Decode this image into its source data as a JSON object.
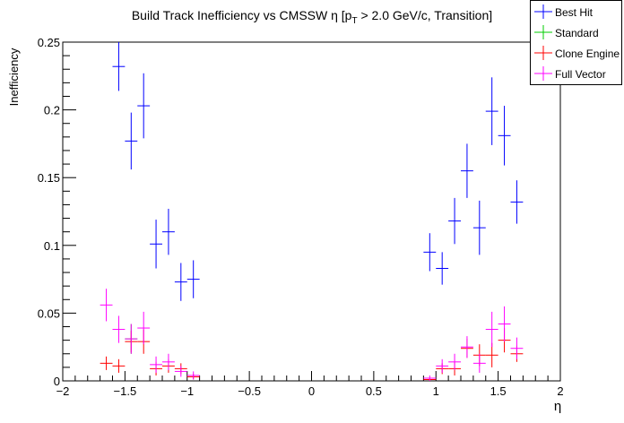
{
  "chart_data": {
    "type": "scatter",
    "title": "Build Track Inefficiency vs CMSSW η [p",
    "title_sub": "T",
    "title_rest": " > 2.0 GeV/c, Transition]",
    "xlabel": "η",
    "ylabel": "Inefficiency",
    "xlim": [
      -2,
      2
    ],
    "ylim": [
      0,
      0.25
    ],
    "xticks": [
      "-2",
      "-1.5",
      "-1",
      "-0.5",
      "0",
      "0.5",
      "1",
      "1.5",
      "2"
    ],
    "xtick_values": [
      -2,
      -1.5,
      -1,
      -0.5,
      0,
      0.5,
      1,
      1.5,
      2
    ],
    "yticks": [
      "0",
      "0.05",
      "0.1",
      "0.15",
      "0.2",
      "0.25"
    ],
    "ytick_values": [
      0,
      0.05,
      0.1,
      0.15,
      0.2,
      0.25
    ],
    "x_half_width": 0.05,
    "legend_position": "top-right",
    "series": [
      {
        "name": "Best Hit",
        "color": "#0000ff",
        "points": [
          {
            "x": -1.55,
            "y": 0.232,
            "err": 0.018
          },
          {
            "x": -1.45,
            "y": 0.177,
            "err": 0.021
          },
          {
            "x": -1.35,
            "y": 0.203,
            "err": 0.024
          },
          {
            "x": -1.25,
            "y": 0.101,
            "err": 0.018
          },
          {
            "x": -1.15,
            "y": 0.11,
            "err": 0.017
          },
          {
            "x": -1.05,
            "y": 0.073,
            "err": 0.014
          },
          {
            "x": -0.95,
            "y": 0.075,
            "err": 0.014
          },
          {
            "x": 0.95,
            "y": 0.095,
            "err": 0.014
          },
          {
            "x": 1.05,
            "y": 0.083,
            "err": 0.012
          },
          {
            "x": 1.15,
            "y": 0.118,
            "err": 0.017
          },
          {
            "x": 1.25,
            "y": 0.155,
            "err": 0.02
          },
          {
            "x": 1.35,
            "y": 0.113,
            "err": 0.02
          },
          {
            "x": 1.45,
            "y": 0.199,
            "err": 0.025
          },
          {
            "x": 1.55,
            "y": 0.181,
            "err": 0.022
          },
          {
            "x": 1.65,
            "y": 0.132,
            "err": 0.016
          }
        ]
      },
      {
        "name": "Standard",
        "color": "#00cc00",
        "points": [
          {
            "x": -1.45,
            "y": 0.031,
            "err": 0.011
          }
        ]
      },
      {
        "name": "Clone Engine",
        "color": "#ff0000",
        "points": [
          {
            "x": -1.65,
            "y": 0.013,
            "err": 0.005
          },
          {
            "x": -1.55,
            "y": 0.011,
            "err": 0.005
          },
          {
            "x": -1.45,
            "y": 0.029,
            "err": 0.008
          },
          {
            "x": -1.35,
            "y": 0.029,
            "err": 0.009
          },
          {
            "x": -1.25,
            "y": 0.009,
            "err": 0.005
          },
          {
            "x": -1.15,
            "y": 0.011,
            "err": 0.005
          },
          {
            "x": -1.05,
            "y": 0.009,
            "err": 0.004
          },
          {
            "x": -0.95,
            "y": 0.003,
            "err": 0.002
          },
          {
            "x": 0.95,
            "y": 0.001,
            "err": 0.001
          },
          {
            "x": 1.05,
            "y": 0.009,
            "err": 0.004
          },
          {
            "x": 1.15,
            "y": 0.009,
            "err": 0.005
          },
          {
            "x": 1.25,
            "y": 0.024,
            "err": 0.007
          },
          {
            "x": 1.35,
            "y": 0.019,
            "err": 0.008
          },
          {
            "x": 1.45,
            "y": 0.019,
            "err": 0.009
          },
          {
            "x": 1.55,
            "y": 0.03,
            "err": 0.009
          },
          {
            "x": 1.65,
            "y": 0.02,
            "err": 0.006
          }
        ]
      },
      {
        "name": "Full Vector",
        "color": "#ff00ff",
        "points": [
          {
            "x": -1.65,
            "y": 0.056,
            "err": 0.012
          },
          {
            "x": -1.55,
            "y": 0.038,
            "err": 0.01
          },
          {
            "x": -1.45,
            "y": 0.031,
            "err": 0.011
          },
          {
            "x": -1.35,
            "y": 0.039,
            "err": 0.012
          },
          {
            "x": -1.25,
            "y": 0.012,
            "err": 0.006
          },
          {
            "x": -1.15,
            "y": 0.014,
            "err": 0.006
          },
          {
            "x": -1.05,
            "y": 0.007,
            "err": 0.004
          },
          {
            "x": -0.95,
            "y": 0.004,
            "err": 0.003
          },
          {
            "x": 0.95,
            "y": 0.002,
            "err": 0.002
          },
          {
            "x": 1.05,
            "y": 0.011,
            "err": 0.005
          },
          {
            "x": 1.15,
            "y": 0.014,
            "err": 0.006
          },
          {
            "x": 1.25,
            "y": 0.025,
            "err": 0.008
          },
          {
            "x": 1.35,
            "y": 0.013,
            "err": 0.007
          },
          {
            "x": 1.45,
            "y": 0.038,
            "err": 0.013
          },
          {
            "x": 1.55,
            "y": 0.042,
            "err": 0.013
          },
          {
            "x": 1.65,
            "y": 0.024,
            "err": 0.008
          }
        ]
      }
    ]
  }
}
